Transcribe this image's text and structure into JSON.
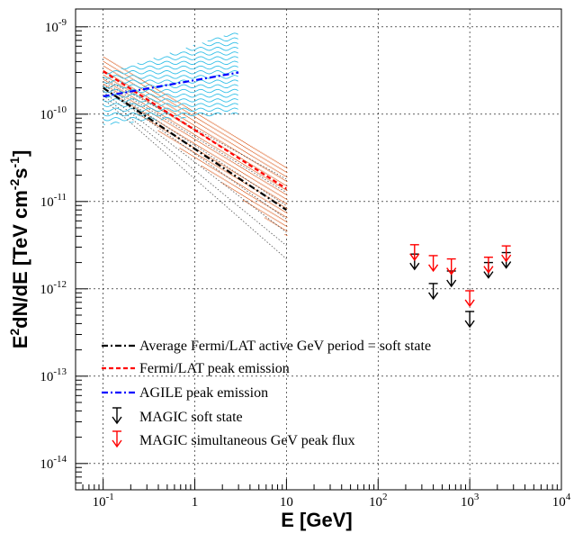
{
  "chart_data": {
    "type": "line",
    "title": "",
    "xlabel": "E [GeV]",
    "ylabel_parts": {
      "base": "E",
      "sup1": "2",
      "mid": "dN/dE [TeV cm",
      "sup2": "-2",
      "mid2": "s",
      "sup3": "-1",
      "end": "]"
    },
    "x_scale": "log",
    "y_scale": "log",
    "xlim": [
      0.05,
      10000
    ],
    "ylim": [
      5e-15,
      1.6e-09
    ],
    "x_ticks": [
      {
        "value": 0.1,
        "base": "10",
        "exp": "-1"
      },
      {
        "value": 1,
        "base": "1",
        "exp": ""
      },
      {
        "value": 10,
        "base": "10",
        "exp": ""
      },
      {
        "value": 100,
        "base": "10",
        "exp": "2"
      },
      {
        "value": 1000,
        "base": "10",
        "exp": "3"
      },
      {
        "value": 10000,
        "base": "10",
        "exp": "4"
      }
    ],
    "y_ticks": [
      {
        "value": 1e-14,
        "base": "10",
        "exp": "-14"
      },
      {
        "value": 1e-13,
        "base": "10",
        "exp": "-13"
      },
      {
        "value": 1e-12,
        "base": "10",
        "exp": "-12"
      },
      {
        "value": 1e-11,
        "base": "10",
        "exp": "-11"
      },
      {
        "value": 1e-10,
        "base": "10",
        "exp": "-10"
      },
      {
        "value": 1e-09,
        "base": "10",
        "exp": "-9"
      }
    ],
    "grid": true,
    "legend_position": "bottom-left",
    "series": [
      {
        "name": "Average Fermi/LAT active GeV period = soft state",
        "color": "#000000",
        "style": "dash-dot",
        "x": [
          0.1,
          10
        ],
        "y": [
          2e-10,
          8e-12
        ]
      },
      {
        "name": "Fermi/LAT peak emission",
        "color": "#ff0000",
        "style": "dashed",
        "x": [
          0.1,
          10
        ],
        "y": [
          3.1e-10,
          1.4e-11
        ]
      },
      {
        "name": "AGILE peak emission",
        "color": "#0000ff",
        "style": "dash-dot",
        "x": [
          0.1,
          3
        ],
        "y": [
          1.6e-10,
          3e-10
        ]
      },
      {
        "name": "MAGIC soft state",
        "color": "#000000",
        "style": "upper-limit",
        "x": [
          250,
          400,
          630,
          1000,
          1600,
          2500
        ],
        "y": [
          2.5e-12,
          1.15e-12,
          1.6e-12,
          5.5e-13,
          2e-12,
          2.6e-12
        ]
      },
      {
        "name": "MAGIC simultaneous GeV peak flux",
        "color": "#ff0000",
        "style": "upper-limit",
        "x": [
          250,
          400,
          630,
          1000,
          1600,
          2500
        ],
        "y": [
          3.2e-12,
          2.4e-12,
          2.2e-12,
          9.5e-13,
          2.3e-12,
          3.1e-12
        ]
      }
    ],
    "bands": [
      {
        "of": "Fermi/LAT peak emission",
        "color": "#e0703a",
        "x": [
          0.1,
          10
        ],
        "upper": [
          4.5e-10,
          2.4e-11
        ],
        "lower": [
          2.1e-10,
          4e-12
        ]
      },
      {
        "of": "AGILE peak emission",
        "color": "#35c0e8",
        "x": [
          0.1,
          3
        ],
        "upper": [
          2.9e-10,
          9e-10
        ],
        "lower": [
          7.5e-11,
          1e-10
        ]
      },
      {
        "of": "Average Fermi/LAT active GeV period = soft state",
        "color": "#555555",
        "x": [
          0.1,
          10
        ],
        "upper": [
          2.6e-10,
          1.8e-11
        ],
        "lower": [
          1.5e-10,
          2.2e-12
        ]
      }
    ]
  }
}
